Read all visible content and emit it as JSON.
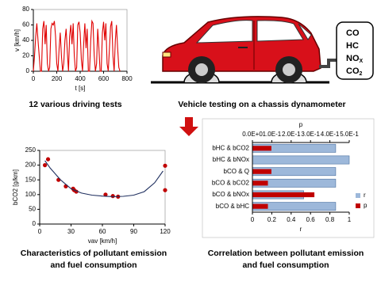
{
  "chart_data": [
    {
      "type": "line",
      "xlabel": "t [s]",
      "ylabel": "v [km/h]",
      "xlim": [
        0,
        800
      ],
      "xticks": [
        0,
        200,
        400,
        600,
        800
      ],
      "ylim": [
        0,
        80
      ],
      "yticks": [
        0,
        20,
        40,
        60,
        80
      ],
      "series": [
        {
          "color": "#e00000",
          "x": [
            0,
            10,
            20,
            30,
            40,
            50,
            60,
            70,
            80,
            90,
            100,
            110,
            120,
            130,
            140,
            150,
            160,
            170,
            180,
            190,
            200,
            210,
            220,
            230,
            240,
            250,
            260,
            270,
            280,
            290,
            300,
            310,
            320,
            330,
            340,
            350,
            360,
            370,
            380,
            390,
            400,
            410,
            420,
            430,
            440,
            450,
            460,
            470,
            480,
            490,
            500,
            510,
            520,
            530,
            540,
            550,
            560,
            570,
            580,
            590,
            600,
            610,
            620,
            630,
            640,
            650,
            660,
            670,
            680,
            690,
            700,
            710,
            720,
            730,
            740
          ],
          "values": [
            0,
            20,
            45,
            62,
            40,
            20,
            0,
            0,
            55,
            65,
            35,
            60,
            10,
            0,
            5,
            55,
            62,
            60,
            65,
            45,
            10,
            0,
            30,
            50,
            20,
            0,
            10,
            40,
            55,
            25,
            0,
            45,
            60,
            35,
            62,
            20,
            0,
            5,
            60,
            64,
            50,
            15,
            0,
            35,
            62,
            30,
            55,
            0,
            0,
            40,
            65,
            62,
            20,
            0,
            10,
            55,
            30,
            0,
            0,
            50,
            64,
            40,
            62,
            10,
            0,
            30,
            58,
            65,
            20,
            0,
            40,
            60,
            30,
            5,
            0
          ]
        }
      ]
    },
    {
      "type": "scatter",
      "xlabel": "vav [km/h]",
      "ylabel": "bCO2 [g/km]",
      "xlim": [
        0,
        120
      ],
      "xticks": [
        0,
        30,
        60,
        90,
        120
      ],
      "ylim": [
        0,
        250
      ],
      "yticks": [
        0,
        50,
        100,
        150,
        200,
        250
      ],
      "series": [
        {
          "color": "#c00000",
          "marker": "circle",
          "x": [
            5,
            8,
            18,
            25,
            32,
            33,
            35,
            63,
            70,
            75,
            120,
            120
          ],
          "values": [
            200,
            220,
            150,
            128,
            120,
            115,
            110,
            100,
            95,
            93,
            115,
            198
          ]
        },
        {
          "color": "#1f2f5f",
          "marker": "none",
          "x": [
            5,
            10,
            20,
            30,
            40,
            50,
            60,
            70,
            80,
            90,
            100,
            110,
            118
          ],
          "values": [
            215,
            190,
            150,
            120,
            105,
            98,
            95,
            93,
            94,
            98,
            110,
            140,
            180
          ]
        }
      ]
    },
    {
      "type": "hbar",
      "xlabel": "r",
      "x2label": "p",
      "categories": [
        "bHC & bCO2",
        "bHC & bNOx",
        "bCO & Q",
        "bCO & bCO2",
        "bCO & bNOx",
        "bCO & bHC"
      ],
      "xlim": [
        0,
        1
      ],
      "xticks": [
        0,
        0.2,
        0.4,
        0.6,
        0.8,
        1
      ],
      "x2lim": [
        0,
        0.5
      ],
      "x2ticks": [
        {
          "value": 0,
          "label": "0.0E+0"
        },
        {
          "value": 0.1,
          "label": "1.0E-1"
        },
        {
          "value": 0.2,
          "label": "2.0E-1"
        },
        {
          "value": 0.3,
          "label": "3.0E-1"
        },
        {
          "value": 0.4,
          "label": "4.0E-1"
        },
        {
          "value": 0.5,
          "label": "5.0E-1"
        }
      ],
      "series": [
        {
          "name": "r",
          "color": "#9db8da",
          "values": [
            0.86,
            1.0,
            0.86,
            0.86,
            0.53,
            0.86
          ]
        },
        {
          "name": "p",
          "color": "#c00000",
          "axis": "x2",
          "values": [
            0.098,
            0,
            0.098,
            0.08,
            0.32,
            0.08
          ]
        }
      ]
    }
  ],
  "captions": {
    "driving": "12 various driving tests",
    "dyno": "Vehicle testing on a chassis dynamometer",
    "emission": [
      "Characteristics of pollutant emission",
      "and fuel consumption"
    ],
    "correlation": [
      "Correlation between pollutant emission",
      "and fuel consumption"
    ]
  },
  "gases": [
    {
      "main": "CO"
    },
    {
      "main": "HC"
    },
    {
      "main": "NO",
      "sub": "X"
    },
    {
      "main": "CO",
      "sub": "2"
    }
  ]
}
